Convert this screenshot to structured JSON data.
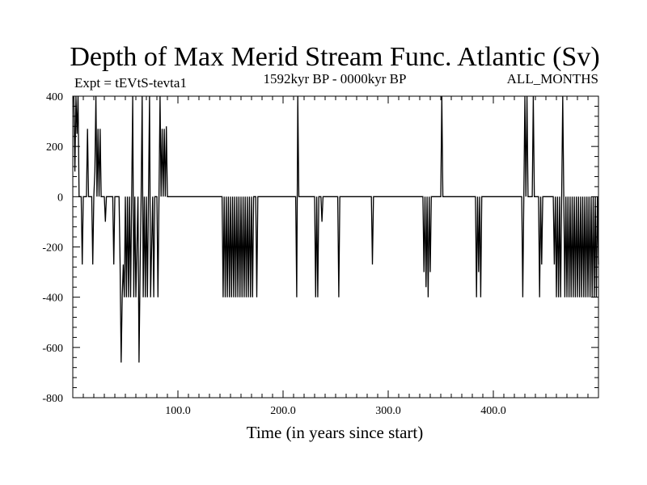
{
  "chart_data": {
    "type": "line",
    "title": "Depth of Max Merid Stream Func. Atlantic (Sv)",
    "subtitle_left": "Expt = tEVtS-tevta1",
    "subtitle_center": "1592kyr BP - 0000kyr BP",
    "subtitle_right": "ALL_MONTHS",
    "xlabel": "Time (in years since start)",
    "ylabel": "",
    "xlim": [
      0,
      500
    ],
    "ylim": [
      -800,
      400
    ],
    "x_ticks": [
      100,
      200,
      300,
      400
    ],
    "x_tick_labels": [
      "100.0",
      "200.0",
      "300.0",
      "400.0"
    ],
    "y_ticks": [
      -800,
      -600,
      -400,
      -200,
      0,
      200,
      400
    ],
    "y_tick_labels": [
      "-800",
      "-600",
      "-400",
      "-200",
      "0",
      "200",
      "400"
    ],
    "x_minor_step": 10,
    "y_minor_step": 40,
    "grid": false,
    "series": [
      {
        "values": [
          [
            1,
            400
          ],
          [
            2,
            100
          ],
          [
            3,
            400
          ],
          [
            4,
            250
          ],
          [
            5,
            400
          ],
          [
            6,
            0
          ],
          [
            8,
            0
          ],
          [
            9,
            -270
          ],
          [
            10,
            0
          ],
          [
            13,
            0
          ],
          [
            14,
            270
          ],
          [
            15,
            0
          ],
          [
            18,
            0
          ],
          [
            19,
            -270
          ],
          [
            20,
            0
          ],
          [
            21,
            100
          ],
          [
            22,
            400
          ],
          [
            23,
            0
          ],
          [
            24,
            270
          ],
          [
            25,
            0
          ],
          [
            26,
            270
          ],
          [
            27,
            0
          ],
          [
            30,
            0
          ],
          [
            31,
            -100
          ],
          [
            32,
            0
          ],
          [
            38,
            0
          ],
          [
            39,
            -270
          ],
          [
            40,
            0
          ],
          [
            44,
            0
          ],
          [
            45,
            -270
          ],
          [
            46,
            -660
          ],
          [
            47,
            -400
          ],
          [
            48,
            -270
          ],
          [
            49,
            -400
          ],
          [
            50,
            0
          ],
          [
            51,
            -400
          ],
          [
            52,
            0
          ],
          [
            53,
            -400
          ],
          [
            54,
            0
          ],
          [
            55,
            -400
          ],
          [
            56,
            0
          ],
          [
            57,
            400
          ],
          [
            58,
            -400
          ],
          [
            59,
            0
          ],
          [
            60,
            -400
          ],
          [
            61,
            -200
          ],
          [
            62,
            0
          ],
          [
            63,
            -660
          ],
          [
            64,
            -300
          ],
          [
            65,
            0
          ],
          [
            66,
            400
          ],
          [
            67,
            -400
          ],
          [
            68,
            0
          ],
          [
            69,
            -400
          ],
          [
            70,
            0
          ],
          [
            71,
            -400
          ],
          [
            72,
            0
          ],
          [
            73,
            400
          ],
          [
            74,
            -400
          ],
          [
            75,
            -200
          ],
          [
            76,
            0
          ],
          [
            77,
            -400
          ],
          [
            78,
            0
          ],
          [
            80,
            0
          ],
          [
            81,
            -400
          ],
          [
            82,
            0
          ],
          [
            83,
            400
          ],
          [
            84,
            0
          ],
          [
            85,
            270
          ],
          [
            86,
            0
          ],
          [
            87,
            270
          ],
          [
            88,
            0
          ],
          [
            89,
            280
          ],
          [
            90,
            0
          ],
          [
            91,
            0
          ],
          [
            92,
            0
          ],
          [
            93,
            0
          ],
          [
            94,
            0
          ],
          [
            95,
            0
          ],
          [
            96,
            0
          ],
          [
            97,
            0
          ],
          [
            98,
            0
          ],
          [
            99,
            0
          ],
          [
            100,
            0
          ],
          [
            101,
            0
          ],
          [
            102,
            0
          ],
          [
            103,
            0
          ],
          [
            104,
            0
          ],
          [
            105,
            0
          ],
          [
            106,
            0
          ],
          [
            107,
            0
          ],
          [
            108,
            0
          ],
          [
            109,
            0
          ],
          [
            110,
            0
          ],
          [
            111,
            0
          ],
          [
            112,
            0
          ],
          [
            113,
            0
          ],
          [
            114,
            0
          ],
          [
            115,
            0
          ],
          [
            116,
            0
          ],
          [
            117,
            0
          ],
          [
            118,
            0
          ],
          [
            119,
            0
          ],
          [
            120,
            0
          ],
          [
            121,
            0
          ],
          [
            122,
            0
          ],
          [
            123,
            0
          ],
          [
            124,
            0
          ],
          [
            125,
            0
          ],
          [
            126,
            0
          ],
          [
            127,
            0
          ],
          [
            128,
            0
          ],
          [
            129,
            0
          ],
          [
            130,
            0
          ],
          [
            131,
            0
          ],
          [
            132,
            0
          ],
          [
            133,
            0
          ],
          [
            134,
            0
          ],
          [
            135,
            0
          ],
          [
            136,
            0
          ],
          [
            137,
            0
          ],
          [
            138,
            0
          ],
          [
            139,
            0
          ],
          [
            140,
            0
          ],
          [
            141,
            0
          ],
          [
            142,
            0
          ],
          [
            143,
            -400
          ],
          [
            144,
            0
          ],
          [
            145,
            -400
          ],
          [
            146,
            0
          ],
          [
            147,
            -400
          ],
          [
            148,
            0
          ],
          [
            149,
            -400
          ],
          [
            150,
            0
          ],
          [
            151,
            -400
          ],
          [
            152,
            0
          ],
          [
            153,
            -400
          ],
          [
            154,
            0
          ],
          [
            155,
            -400
          ],
          [
            156,
            0
          ],
          [
            157,
            -400
          ],
          [
            158,
            0
          ],
          [
            159,
            -400
          ],
          [
            160,
            0
          ],
          [
            161,
            -400
          ],
          [
            162,
            0
          ],
          [
            163,
            -400
          ],
          [
            164,
            0
          ],
          [
            165,
            -400
          ],
          [
            166,
            0
          ],
          [
            167,
            -400
          ],
          [
            168,
            0
          ],
          [
            169,
            -400
          ],
          [
            170,
            0
          ],
          [
            171,
            -400
          ],
          [
            172,
            0
          ],
          [
            173,
            0
          ],
          [
            174,
            0
          ],
          [
            175,
            -400
          ],
          [
            176,
            0
          ],
          [
            177,
            0
          ],
          [
            178,
            0
          ],
          [
            179,
            0
          ],
          [
            180,
            0
          ],
          [
            181,
            0
          ],
          [
            182,
            0
          ],
          [
            183,
            0
          ],
          [
            184,
            0
          ],
          [
            185,
            0
          ],
          [
            186,
            0
          ],
          [
            187,
            0
          ],
          [
            188,
            0
          ],
          [
            189,
            0
          ],
          [
            190,
            0
          ],
          [
            191,
            0
          ],
          [
            192,
            0
          ],
          [
            193,
            0
          ],
          [
            194,
            0
          ],
          [
            195,
            0
          ],
          [
            196,
            0
          ],
          [
            197,
            0
          ],
          [
            198,
            0
          ],
          [
            199,
            0
          ],
          [
            200,
            0
          ],
          [
            212,
            0
          ],
          [
            213,
            -400
          ],
          [
            214,
            400
          ],
          [
            215,
            0
          ],
          [
            216,
            0
          ],
          [
            230,
            0
          ],
          [
            231,
            -400
          ],
          [
            232,
            0
          ],
          [
            233,
            -400
          ],
          [
            234,
            0
          ],
          [
            236,
            0
          ],
          [
            237,
            -100
          ],
          [
            238,
            0
          ],
          [
            252,
            0
          ],
          [
            253,
            -400
          ],
          [
            254,
            0
          ],
          [
            284,
            0
          ],
          [
            285,
            -270
          ],
          [
            286,
            0
          ],
          [
            333,
            0
          ],
          [
            334,
            -300
          ],
          [
            335,
            0
          ],
          [
            336,
            -360
          ],
          [
            337,
            0
          ],
          [
            338,
            -400
          ],
          [
            339,
            0
          ],
          [
            340,
            -300
          ],
          [
            341,
            0
          ],
          [
            350,
            0
          ],
          [
            351,
            400
          ],
          [
            352,
            0
          ],
          [
            383,
            0
          ],
          [
            384,
            -400
          ],
          [
            385,
            0
          ],
          [
            386,
            -300
          ],
          [
            387,
            0
          ],
          [
            388,
            -400
          ],
          [
            389,
            0
          ],
          [
            427,
            0
          ],
          [
            428,
            -400
          ],
          [
            429,
            0
          ],
          [
            430,
            400
          ],
          [
            431,
            0
          ],
          [
            432,
            400
          ],
          [
            433,
            0
          ],
          [
            437,
            0
          ],
          [
            438,
            400
          ],
          [
            439,
            0
          ],
          [
            443,
            0
          ],
          [
            444,
            -400
          ],
          [
            445,
            0
          ],
          [
            446,
            -270
          ],
          [
            447,
            0
          ],
          [
            457,
            0
          ],
          [
            458,
            -270
          ],
          [
            459,
            0
          ],
          [
            460,
            -400
          ],
          [
            461,
            0
          ],
          [
            462,
            -400
          ],
          [
            463,
            0
          ],
          [
            464,
            -400
          ],
          [
            465,
            0
          ],
          [
            466,
            400
          ],
          [
            467,
            0
          ],
          [
            468,
            -400
          ],
          [
            469,
            0
          ],
          [
            470,
            -400
          ],
          [
            471,
            0
          ],
          [
            472,
            -400
          ],
          [
            473,
            0
          ],
          [
            474,
            -400
          ],
          [
            475,
            0
          ],
          [
            476,
            -400
          ],
          [
            477,
            0
          ],
          [
            478,
            -400
          ],
          [
            479,
            0
          ],
          [
            480,
            -400
          ],
          [
            481,
            0
          ],
          [
            482,
            -400
          ],
          [
            483,
            0
          ],
          [
            484,
            -400
          ],
          [
            485,
            0
          ],
          [
            486,
            -400
          ],
          [
            487,
            0
          ],
          [
            488,
            -400
          ],
          [
            489,
            0
          ],
          [
            490,
            -400
          ],
          [
            491,
            0
          ],
          [
            492,
            -400
          ],
          [
            493,
            0
          ],
          [
            494,
            -400
          ],
          [
            495,
            0
          ],
          [
            496,
            -400
          ],
          [
            497,
            0
          ],
          [
            498,
            -400
          ],
          [
            499,
            0
          ],
          [
            500,
            -270
          ]
        ]
      }
    ]
  }
}
